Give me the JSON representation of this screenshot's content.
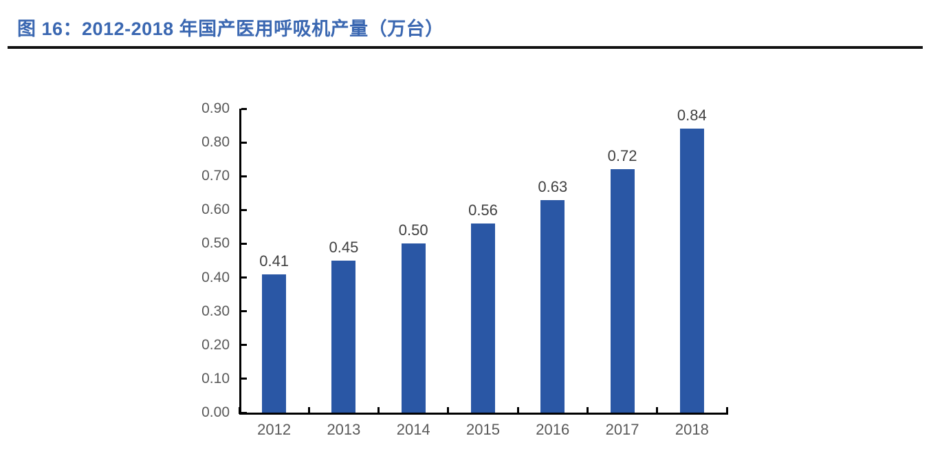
{
  "title": {
    "label": "图 16：2012-2018 年国产医用呼吸机产量（万台）"
  },
  "colors": {
    "title": "#3a67b1",
    "underline": "#111111",
    "bar": "#2a57a5",
    "axis": "#000000",
    "tick_label": "#595959",
    "value_label": "#3f3f3f",
    "background": "#ffffff"
  },
  "chart_data": {
    "type": "bar",
    "title": "图 16：2012-2018 年国产医用呼吸机产量（万台）",
    "categories": [
      "2012",
      "2013",
      "2014",
      "2015",
      "2016",
      "2017",
      "2018"
    ],
    "values": [
      0.41,
      0.45,
      0.5,
      0.56,
      0.63,
      0.72,
      0.84
    ],
    "value_labels": [
      "0.41",
      "0.45",
      "0.50",
      "0.56",
      "0.63",
      "0.72",
      "0.84"
    ],
    "y_tick_labels": [
      "0.00",
      "0.10",
      "0.20",
      "0.30",
      "0.40",
      "0.50",
      "0.60",
      "0.70",
      "0.80",
      "0.90"
    ],
    "ylim": [
      0.0,
      0.9
    ],
    "xlabel": "",
    "ylabel": "",
    "grid": false,
    "legend_position": "none",
    "bar_color_hex": "#2a57a5",
    "tick_style": "inside"
  }
}
